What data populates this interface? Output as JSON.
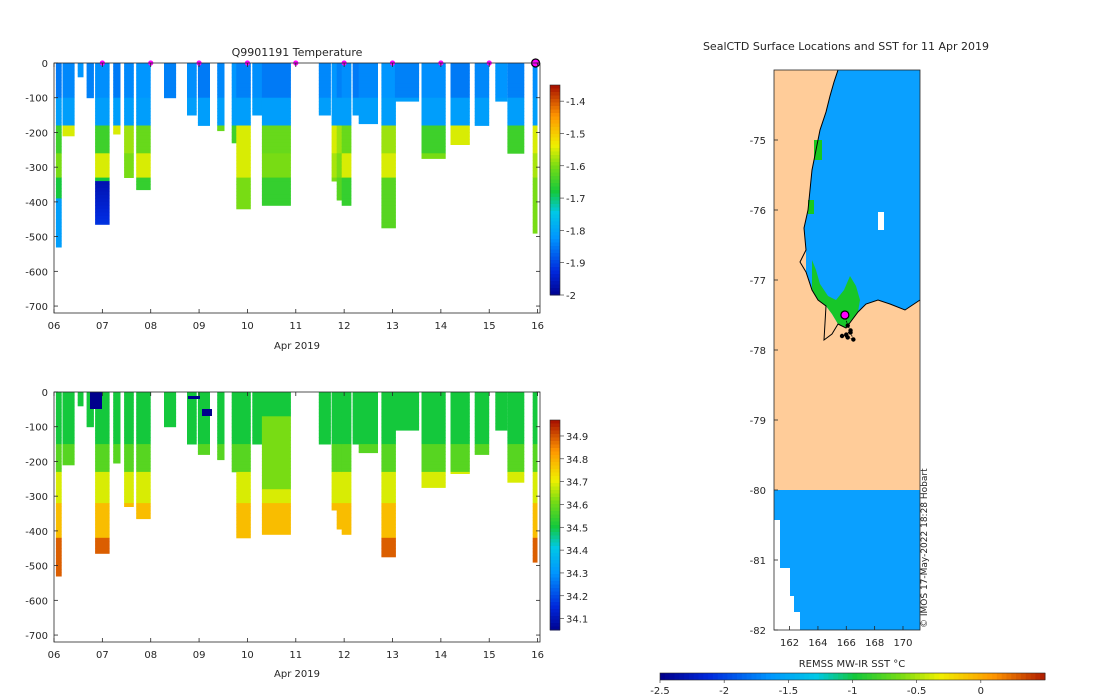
{
  "top_panel": {
    "title": "Q9901191  Temperature",
    "xlabel": "Apr 2019"
  },
  "bottom_panel": {
    "title": "",
    "xlabel": "Apr 2019"
  },
  "map_panel": {
    "title": "SealCTD Surface Locations and SST for 11 Apr 2019",
    "colorbar_label": "REMSS MW-IR SST °C",
    "credit": "© IMOS 17-May-2022 18:28 Hobart"
  },
  "colors": {
    "land": "#ffcc99",
    "sst_cold": "#0aa0ff",
    "sst_green": "#18c81e",
    "coast": "#000000",
    "marker": "#ff00ff"
  },
  "chart_data": [
    {
      "type": "heatmap",
      "name": "temperature-profile",
      "title": "Q9901191  Temperature",
      "xlabel": "Apr 2019",
      "ylabel": "",
      "x_ticks": [
        "06",
        "07",
        "08",
        "09",
        "10",
        "11",
        "12",
        "13",
        "14",
        "15",
        "16"
      ],
      "y_ticks": [
        0,
        -100,
        -200,
        -300,
        -400,
        -500,
        -600,
        -700
      ],
      "xlim": [
        6,
        16.05
      ],
      "ylim": [
        -720,
        0
      ],
      "colorbar": {
        "min": -2,
        "max": -1.35,
        "ticks": [
          -1.4,
          -1.5,
          -1.6,
          -1.7,
          -1.8,
          -1.9,
          -2
        ]
      },
      "surface_markers_day": [
        7,
        8,
        9,
        10,
        11,
        12,
        13,
        14,
        15,
        16
      ],
      "profiles": [
        {
          "day": 6.1,
          "width": 0.12,
          "max_depth": 530
        },
        {
          "day": 6.3,
          "width": 0.25,
          "max_depth": 210
        },
        {
          "day": 6.55,
          "width": 0.12,
          "max_depth": 40
        },
        {
          "day": 6.75,
          "width": 0.15,
          "max_depth": 100
        },
        {
          "day": 7.0,
          "width": 0.3,
          "max_depth": 465
        },
        {
          "day": 7.3,
          "width": 0.15,
          "max_depth": 205
        },
        {
          "day": 7.55,
          "width": 0.2,
          "max_depth": 330
        },
        {
          "day": 7.85,
          "width": 0.3,
          "max_depth": 365
        },
        {
          "day": 8.4,
          "width": 0.25,
          "max_depth": 100
        },
        {
          "day": 8.85,
          "width": 0.2,
          "max_depth": 150
        },
        {
          "day": 9.1,
          "width": 0.25,
          "max_depth": 180
        },
        {
          "day": 9.45,
          "width": 0.15,
          "max_depth": 195
        },
        {
          "day": 9.75,
          "width": 0.15,
          "max_depth": 230
        },
        {
          "day": 9.92,
          "width": 0.3,
          "max_depth": 420
        },
        {
          "day": 10.2,
          "width": 0.2,
          "max_depth": 150
        },
        {
          "day": 10.6,
          "width": 0.6,
          "max_depth": 410
        },
        {
          "day": 11.6,
          "width": 0.25,
          "max_depth": 150
        },
        {
          "day": 11.8,
          "width": 0.12,
          "max_depth": 340
        },
        {
          "day": 11.92,
          "width": 0.15,
          "max_depth": 395
        },
        {
          "day": 12.05,
          "width": 0.2,
          "max_depth": 410
        },
        {
          "day": 12.25,
          "width": 0.15,
          "max_depth": 150
        },
        {
          "day": 12.5,
          "width": 0.4,
          "max_depth": 175
        },
        {
          "day": 12.92,
          "width": 0.3,
          "max_depth": 475
        },
        {
          "day": 13.3,
          "width": 0.5,
          "max_depth": 110
        },
        {
          "day": 13.85,
          "width": 0.5,
          "max_depth": 275
        },
        {
          "day": 14.4,
          "width": 0.4,
          "max_depth": 235
        },
        {
          "day": 14.85,
          "width": 0.3,
          "max_depth": 180
        },
        {
          "day": 15.25,
          "width": 0.25,
          "max_depth": 110
        },
        {
          "day": 15.55,
          "width": 0.35,
          "max_depth": 260
        },
        {
          "day": 15.95,
          "width": 0.1,
          "max_depth": 490
        }
      ]
    },
    {
      "type": "heatmap",
      "name": "salinity-profile",
      "title": "",
      "xlabel": "Apr 2019",
      "ylabel": "",
      "x_ticks": [
        "06",
        "07",
        "08",
        "09",
        "10",
        "11",
        "12",
        "13",
        "14",
        "15",
        "16"
      ],
      "y_ticks": [
        0,
        -100,
        -200,
        -300,
        -400,
        -500,
        -600,
        -700
      ],
      "xlim": [
        6,
        16.05
      ],
      "ylim": [
        -720,
        0
      ],
      "colorbar": {
        "min": 34.05,
        "max": 34.97,
        "ticks": [
          34.9,
          34.8,
          34.7,
          34.6,
          34.5,
          34.4,
          34.3,
          34.2,
          34.1
        ]
      }
    },
    {
      "type": "heatmap",
      "name": "sst-map",
      "title": "SealCTD Surface Locations and SST for 11 Apr 2019",
      "xlabel": "REMSS MW-IR SST °C",
      "x_ticks": [
        162,
        164,
        166,
        168,
        170
      ],
      "y_ticks": [
        -75,
        -76,
        -77,
        -78,
        -79,
        -80,
        -81,
        -82
      ],
      "xlim": [
        160.9,
        171.2
      ],
      "ylim": [
        -82,
        -74
      ],
      "colorbar": {
        "min": -2.5,
        "max": 0.5,
        "ticks": [
          -2.5,
          -2,
          -1.5,
          -1,
          -0.5,
          0
        ]
      },
      "track_lonlat": [
        [
          165.9,
          -77.5
        ],
        [
          166.1,
          -77.65
        ],
        [
          166.3,
          -77.72
        ],
        [
          166.0,
          -77.78
        ],
        [
          165.7,
          -77.8
        ],
        [
          166.1,
          -77.82
        ],
        [
          166.5,
          -77.85
        ],
        [
          166.3,
          -77.75
        ]
      ]
    }
  ]
}
